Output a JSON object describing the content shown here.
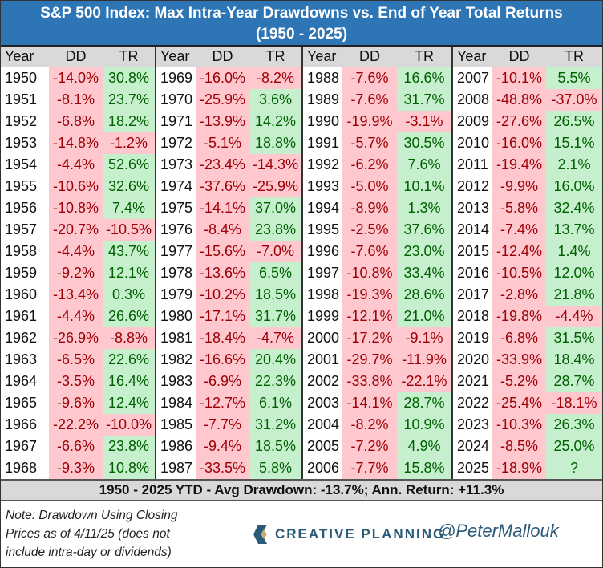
{
  "title": {
    "line1": "S&P 500 Index: Max Intra-Year Drawdowns vs. End of Year Total Returns",
    "line2": "(1950 - 2025)"
  },
  "headers": {
    "year": "Year",
    "dd": "DD",
    "tr": "TR"
  },
  "colors": {
    "header_bg": "#2E75B6",
    "negative_bg": "#FFC7CE",
    "negative_text": "#9C0006",
    "positive_bg": "#C6EFCE",
    "positive_text": "#006100",
    "gray": "#D9D9D9"
  },
  "blocks": [
    [
      [
        "1950",
        "-14.0%",
        "30.8%"
      ],
      [
        "1951",
        "-8.1%",
        "23.7%"
      ],
      [
        "1952",
        "-6.8%",
        "18.2%"
      ],
      [
        "1953",
        "-14.8%",
        "-1.2%"
      ],
      [
        "1954",
        "-4.4%",
        "52.6%"
      ],
      [
        "1955",
        "-10.6%",
        "32.6%"
      ],
      [
        "1956",
        "-10.8%",
        "7.4%"
      ],
      [
        "1957",
        "-20.7%",
        "-10.5%"
      ],
      [
        "1958",
        "-4.4%",
        "43.7%"
      ],
      [
        "1959",
        "-9.2%",
        "12.1%"
      ],
      [
        "1960",
        "-13.4%",
        "0.3%"
      ],
      [
        "1961",
        "-4.4%",
        "26.6%"
      ],
      [
        "1962",
        "-26.9%",
        "-8.8%"
      ],
      [
        "1963",
        "-6.5%",
        "22.6%"
      ],
      [
        "1964",
        "-3.5%",
        "16.4%"
      ],
      [
        "1965",
        "-9.6%",
        "12.4%"
      ],
      [
        "1966",
        "-22.2%",
        "-10.0%"
      ],
      [
        "1967",
        "-6.6%",
        "23.8%"
      ],
      [
        "1968",
        "-9.3%",
        "10.8%"
      ]
    ],
    [
      [
        "1969",
        "-16.0%",
        "-8.2%"
      ],
      [
        "1970",
        "-25.9%",
        "3.6%"
      ],
      [
        "1971",
        "-13.9%",
        "14.2%"
      ],
      [
        "1972",
        "-5.1%",
        "18.8%"
      ],
      [
        "1973",
        "-23.4%",
        "-14.3%"
      ],
      [
        "1974",
        "-37.6%",
        "-25.9%"
      ],
      [
        "1975",
        "-14.1%",
        "37.0%"
      ],
      [
        "1976",
        "-8.4%",
        "23.8%"
      ],
      [
        "1977",
        "-15.6%",
        "-7.0%"
      ],
      [
        "1978",
        "-13.6%",
        "6.5%"
      ],
      [
        "1979",
        "-10.2%",
        "18.5%"
      ],
      [
        "1980",
        "-17.1%",
        "31.7%"
      ],
      [
        "1981",
        "-18.4%",
        "-4.7%"
      ],
      [
        "1982",
        "-16.6%",
        "20.4%"
      ],
      [
        "1983",
        "-6.9%",
        "22.3%"
      ],
      [
        "1984",
        "-12.7%",
        "6.1%"
      ],
      [
        "1985",
        "-7.7%",
        "31.2%"
      ],
      [
        "1986",
        "-9.4%",
        "18.5%"
      ],
      [
        "1987",
        "-33.5%",
        "5.8%"
      ]
    ],
    [
      [
        "1988",
        "-7.6%",
        "16.6%"
      ],
      [
        "1989",
        "-7.6%",
        "31.7%"
      ],
      [
        "1990",
        "-19.9%",
        "-3.1%"
      ],
      [
        "1991",
        "-5.7%",
        "30.5%"
      ],
      [
        "1992",
        "-6.2%",
        "7.6%"
      ],
      [
        "1993",
        "-5.0%",
        "10.1%"
      ],
      [
        "1994",
        "-8.9%",
        "1.3%"
      ],
      [
        "1995",
        "-2.5%",
        "37.6%"
      ],
      [
        "1996",
        "-7.6%",
        "23.0%"
      ],
      [
        "1997",
        "-10.8%",
        "33.4%"
      ],
      [
        "1998",
        "-19.3%",
        "28.6%"
      ],
      [
        "1999",
        "-12.1%",
        "21.0%"
      ],
      [
        "2000",
        "-17.2%",
        "-9.1%"
      ],
      [
        "2001",
        "-29.7%",
        "-11.9%"
      ],
      [
        "2002",
        "-33.8%",
        "-22.1%"
      ],
      [
        "2003",
        "-14.1%",
        "28.7%"
      ],
      [
        "2004",
        "-8.2%",
        "10.9%"
      ],
      [
        "2005",
        "-7.2%",
        "4.9%"
      ],
      [
        "2006",
        "-7.7%",
        "15.8%"
      ]
    ],
    [
      [
        "2007",
        "-10.1%",
        "5.5%"
      ],
      [
        "2008",
        "-48.8%",
        "-37.0%"
      ],
      [
        "2009",
        "-27.6%",
        "26.5%"
      ],
      [
        "2010",
        "-16.0%",
        "15.1%"
      ],
      [
        "2011",
        "-19.4%",
        "2.1%"
      ],
      [
        "2012",
        "-9.9%",
        "16.0%"
      ],
      [
        "2013",
        "-5.8%",
        "32.4%"
      ],
      [
        "2014",
        "-7.4%",
        "13.7%"
      ],
      [
        "2015",
        "-12.4%",
        "1.4%"
      ],
      [
        "2016",
        "-10.5%",
        "12.0%"
      ],
      [
        "2017",
        "-2.8%",
        "21.8%"
      ],
      [
        "2018",
        "-19.8%",
        "-4.4%"
      ],
      [
        "2019",
        "-6.8%",
        "31.5%"
      ],
      [
        "2020",
        "-33.9%",
        "18.4%"
      ],
      [
        "2021",
        "-5.2%",
        "28.7%"
      ],
      [
        "2022",
        "-25.4%",
        "-18.1%"
      ],
      [
        "2023",
        "-10.3%",
        "26.3%"
      ],
      [
        "2024",
        "-8.5%",
        "25.0%"
      ],
      [
        "2025",
        "-18.9%",
        "?"
      ]
    ]
  ],
  "summary": "1950 - 2025 YTD - Avg Drawdown: -13.7%; Ann. Return: +11.3%",
  "note": "Note: Drawdown Using Closing Prices as of 4/11/25 (does not include intra-day or dividends)",
  "logo": {
    "text": "CREATIVE PLANNING",
    "icon": "creative-planning-c-icon"
  },
  "handle": "@PeterMallouk"
}
